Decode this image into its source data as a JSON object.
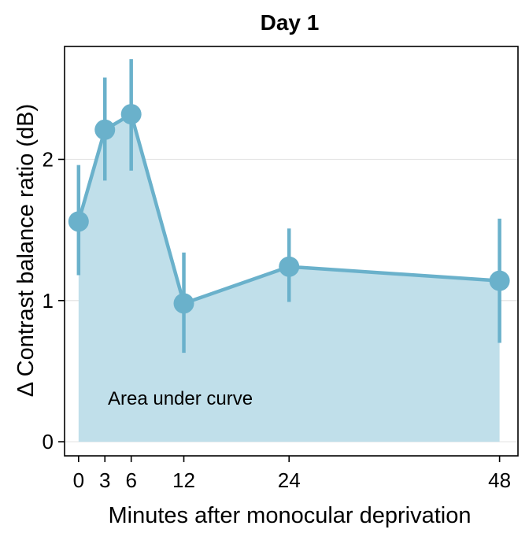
{
  "chart_data": {
    "type": "line",
    "title": "Day 1",
    "xlabel": "Minutes after monocular deprivation",
    "ylabel": "Δ Contrast balance ratio (dB)",
    "x": [
      0,
      3,
      6,
      12,
      24,
      48
    ],
    "x_tick_labels": [
      "0",
      "3",
      "6",
      "12",
      "24",
      "48"
    ],
    "y_ticks": [
      0,
      1,
      2
    ],
    "y_tick_labels": [
      "0",
      "1",
      "2"
    ],
    "xlim": [
      -1.6,
      50.1
    ],
    "ylim": [
      -0.1,
      2.8
    ],
    "series": [
      {
        "name": "Day 1",
        "values": [
          1.56,
          2.21,
          2.32,
          0.98,
          1.24,
          1.14
        ],
        "error_lower": [
          1.18,
          1.85,
          1.92,
          0.63,
          0.99,
          0.7
        ],
        "error_upper": [
          1.96,
          2.58,
          2.71,
          1.34,
          1.51,
          1.58
        ]
      }
    ],
    "annotation": "Area under curve",
    "grid": "horizontal",
    "colors": {
      "line": "#6ab1cb",
      "area": "#c0dfea",
      "grid": "#e5e5e5",
      "axis": "#000000"
    }
  }
}
